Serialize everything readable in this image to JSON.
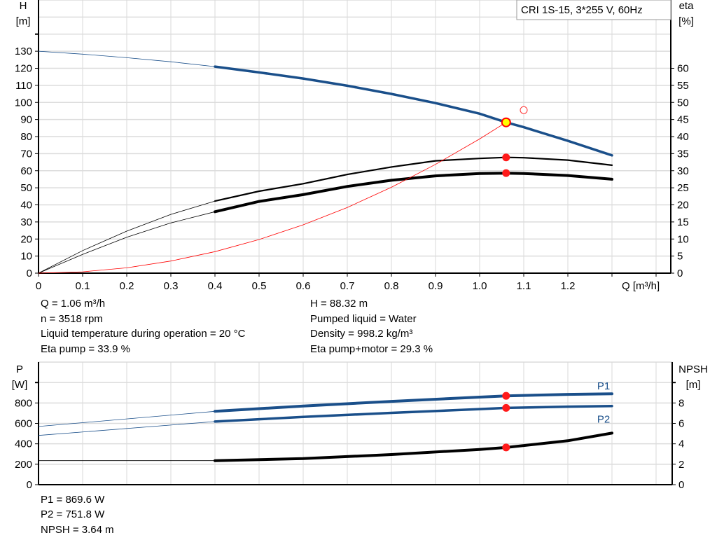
{
  "chart_data": [
    {
      "type": "line",
      "legend": "CRI 1S-15, 3*255 V, 60Hz",
      "xlabel": "Q [m³/h]",
      "ylabel_left": "H",
      "ylabel_left_unit": "[m]",
      "ylabel_right": "eta",
      "ylabel_right_unit": "[%]",
      "xlim": [
        0,
        1.45
      ],
      "ylim_left": [
        0,
        160
      ],
      "ylim_right": [
        0,
        80
      ],
      "grid": true,
      "x_ticks": [
        "0",
        "0.1",
        "0.2",
        "0.3",
        "0.4",
        "0.5",
        "0.6",
        "0.7",
        "0.8",
        "0.9",
        "1.0",
        "1.1",
        "1.2"
      ],
      "y_left_ticks": [
        "0",
        "10",
        "20",
        "30",
        "40",
        "50",
        "60",
        "70",
        "80",
        "90",
        "100",
        "110",
        "120",
        "130"
      ],
      "y_right_ticks": [
        "0",
        "5",
        "10",
        "15",
        "20",
        "25",
        "30",
        "35",
        "40",
        "45",
        "50",
        "55",
        "60"
      ],
      "series": [
        {
          "axis": "left",
          "color": "#1a4f8a",
          "x": [
            0,
            0.1,
            0.2,
            0.3,
            0.4,
            0.5,
            0.6,
            0.7,
            0.8,
            0.9,
            1.0,
            1.06,
            1.1,
            1.2,
            1.3
          ],
          "y": [
            130,
            128.3,
            126.2,
            123.8,
            121,
            117.6,
            114,
            109.8,
            105,
            99.6,
            93.4,
            88.32,
            85.5,
            77.5,
            69
          ],
          "thin_below": 0.4
        },
        {
          "axis": "right",
          "color": "#000000",
          "x": [
            0,
            0.1,
            0.2,
            0.3,
            0.4,
            0.5,
            0.6,
            0.7,
            0.8,
            0.9,
            1.0,
            1.06,
            1.1,
            1.2,
            1.3
          ],
          "y": [
            0,
            6.6,
            12.3,
            17.2,
            21.1,
            24,
            26.2,
            28.9,
            31.1,
            32.9,
            33.6,
            33.9,
            33.8,
            33.1,
            31.6
          ],
          "thin_below": 0.4
        },
        {
          "axis": "right",
          "color": "#000000",
          "x": [
            0,
            0.1,
            0.2,
            0.3,
            0.4,
            0.5,
            0.6,
            0.7,
            0.8,
            0.9,
            1.0,
            1.06,
            1.1,
            1.2,
            1.3
          ],
          "y": [
            0,
            5.5,
            10.5,
            14.7,
            18,
            21,
            23,
            25.4,
            27.2,
            28.5,
            29.2,
            29.3,
            29.2,
            28.6,
            27.5
          ],
          "thin_below": 0.4,
          "bold": true
        },
        {
          "axis": "left",
          "color": "#ff0000",
          "x": [
            0,
            0.1,
            0.2,
            0.3,
            0.4,
            0.5,
            0.6,
            0.7,
            0.8,
            0.9,
            1.0,
            1.06
          ],
          "y": [
            0,
            0.8,
            3.1,
            7.1,
            12.6,
            19.7,
            28.3,
            38.5,
            50.3,
            63.7,
            78.6,
            88.32
          ],
          "system_curve": true
        }
      ],
      "duty_point": {
        "x": 1.06,
        "y": 88.32
      },
      "requested_point": {
        "x": 1.1,
        "y": 95.5
      },
      "eta_points": [
        {
          "x": 1.06,
          "y": 33.9
        },
        {
          "x": 1.06,
          "y": 29.3
        }
      ]
    },
    {
      "type": "line",
      "ylabel_left": "P",
      "ylabel_left_unit": "[W]",
      "ylabel_right": "NPSH",
      "ylabel_right_unit": "[m]",
      "ylim_left": [
        0,
        1200
      ],
      "ylim_right": [
        0,
        12
      ],
      "grid": true,
      "y_left_ticks": [
        "0",
        "200",
        "400",
        "600",
        "800"
      ],
      "y_right_ticks": [
        "0",
        "2",
        "4",
        "6",
        "8"
      ],
      "series": [
        {
          "name": "P1",
          "axis": "left",
          "color": "#1a4f8a",
          "x": [
            0,
            0.4,
            0.6,
            0.8,
            1.0,
            1.06,
            1.2,
            1.3
          ],
          "y": [
            570,
            718,
            770,
            815,
            857,
            869.6,
            884,
            890
          ],
          "thin_below": 0.4,
          "bold": true
        },
        {
          "name": "P2",
          "axis": "left",
          "color": "#1a4f8a",
          "x": [
            0,
            0.4,
            0.6,
            0.8,
            1.0,
            1.06,
            1.2,
            1.3
          ],
          "y": [
            482,
            618,
            663,
            703,
            740,
            751.8,
            764,
            770
          ],
          "thin_below": 0.4
        },
        {
          "axis": "right",
          "color": "#000000",
          "x": [
            0,
            0.4,
            0.6,
            0.8,
            1.0,
            1.06,
            1.2,
            1.3
          ],
          "y": [
            2.35,
            2.35,
            2.55,
            2.95,
            3.45,
            3.64,
            4.3,
            5.05
          ],
          "thin_below": 0.4,
          "bold": true
        }
      ],
      "points": [
        {
          "axis": "left",
          "x": 1.06,
          "y": 869.6
        },
        {
          "axis": "left",
          "x": 1.06,
          "y": 751.8
        },
        {
          "axis": "right",
          "x": 1.06,
          "y": 3.64
        }
      ]
    }
  ],
  "info_top": {
    "left": [
      "Q = 1.06 m³/h",
      "n = 3518 rpm",
      "Liquid temperature during operation = 20 °C",
      "Eta pump = 33.9 %"
    ],
    "right": [
      "H = 88.32 m",
      "Pumped liquid = Water",
      "Density = 998.2 kg/m³",
      "Eta pump+motor = 29.3 %"
    ]
  },
  "info_bottom": [
    "P1 = 869.6 W",
    "P2 = 751.8 W",
    "NPSH = 3.64 m"
  ]
}
